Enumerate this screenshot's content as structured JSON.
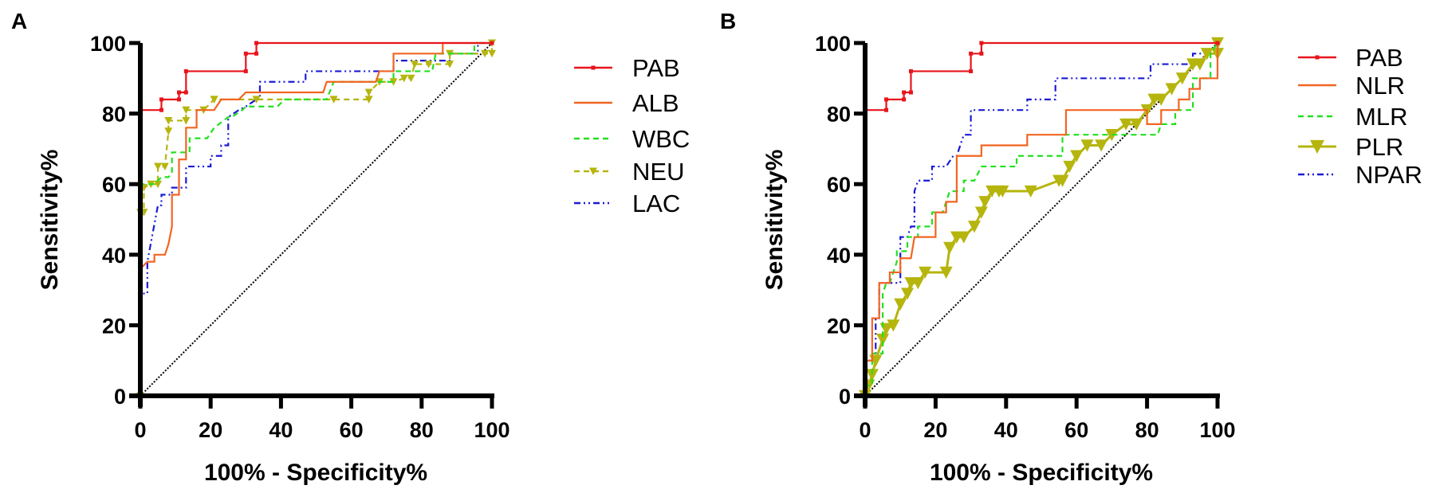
{
  "chart_data": [
    {
      "panel": "A",
      "type": "line",
      "title": "",
      "xlabel": "100% - Specificity%",
      "ylabel": "Sensitivity%",
      "xlim": [
        0,
        100
      ],
      "ylim": [
        0,
        100
      ],
      "xticks": [
        "0",
        "20",
        "40",
        "60",
        "80",
        "100"
      ],
      "yticks": [
        "0",
        "20",
        "40",
        "60",
        "80",
        "100"
      ],
      "grid": false,
      "legend_position": "right",
      "reference_line": {
        "name": "chance",
        "x": [
          0,
          100
        ],
        "y": [
          0,
          100
        ],
        "color": "#000000",
        "style": "dotted"
      },
      "series": [
        {
          "name": "PAB",
          "color": "#e8141c",
          "style": "solid-square-markers",
          "x": [
            0,
            0,
            6,
            6,
            11,
            11,
            13,
            13,
            30,
            30,
            33,
            33,
            100
          ],
          "y": [
            0,
            81,
            81,
            84,
            84,
            86,
            86,
            92,
            92,
            97,
            97,
            100,
            100
          ]
        },
        {
          "name": "ALB",
          "color": "#f26522",
          "style": "solid",
          "x": [
            0,
            0,
            2,
            4,
            4,
            7,
            8,
            9,
            9,
            11,
            11,
            13,
            13,
            16,
            16,
            21,
            23,
            28,
            30,
            52,
            53,
            67,
            68,
            72,
            72,
            86,
            86,
            100
          ],
          "y": [
            0,
            36,
            38,
            38,
            40,
            40,
            43,
            48,
            57,
            57,
            67,
            67,
            76,
            76,
            81,
            81,
            84,
            84,
            86,
            86,
            89,
            89,
            92,
            92,
            97,
            97,
            100,
            100
          ]
        },
        {
          "name": "WBC",
          "color": "#22e01f",
          "style": "dashed",
          "x": [
            0,
            0,
            4,
            6,
            8,
            9,
            9,
            14,
            14,
            19,
            21,
            25,
            26,
            29,
            30,
            39,
            41,
            53,
            55,
            72,
            72,
            83,
            84,
            95,
            95,
            100
          ],
          "y": [
            0,
            60,
            60,
            62,
            62,
            63,
            69,
            69,
            73,
            73,
            76,
            79,
            79,
            81,
            82,
            82,
            84,
            84,
            89,
            89,
            92,
            92,
            97,
            97,
            100,
            100
          ]
        },
        {
          "name": "NEU",
          "color": "#b5b50e",
          "style": "dashed-triangle-markers",
          "x": [
            0,
            0,
            1,
            1,
            3,
            5,
            5,
            7,
            8,
            8,
            13,
            13,
            18,
            21,
            21,
            33,
            55,
            65,
            65,
            68,
            72,
            75,
            77,
            78,
            82,
            88,
            88,
            98,
            100,
            100
          ],
          "y": [
            0,
            52,
            52,
            59,
            60,
            60,
            65,
            65,
            75,
            78,
            78,
            81,
            81,
            84,
            84,
            84,
            84,
            84,
            86,
            89,
            89,
            90,
            90,
            94,
            94,
            94,
            97,
            97,
            97,
            100
          ]
        },
        {
          "name": "LAC",
          "color": "#1a1ad6",
          "style": "dash-dot-dot",
          "x": [
            0,
            0,
            2,
            2,
            5,
            6,
            6,
            9,
            9,
            13,
            13,
            20,
            20,
            23,
            23,
            25,
            25,
            28,
            30,
            33,
            34,
            34,
            47,
            47,
            72,
            72,
            88,
            88,
            96,
            96,
            100
          ],
          "y": [
            0,
            29,
            29,
            38,
            54,
            54,
            57,
            57,
            59,
            59,
            65,
            65,
            68,
            68,
            71,
            71,
            79,
            81,
            82,
            84,
            84,
            89,
            89,
            92,
            92,
            95,
            95,
            97,
            97,
            100,
            100
          ]
        }
      ]
    },
    {
      "panel": "B",
      "type": "line",
      "title": "",
      "xlabel": "100% - Specificity%",
      "ylabel": "Sensitivity%",
      "xlim": [
        0,
        100
      ],
      "ylim": [
        0,
        100
      ],
      "xticks": [
        "0",
        "20",
        "40",
        "60",
        "80",
        "100"
      ],
      "yticks": [
        "0",
        "20",
        "40",
        "60",
        "80",
        "100"
      ],
      "grid": false,
      "legend_position": "right",
      "reference_line": {
        "name": "chance",
        "x": [
          0,
          100
        ],
        "y": [
          0,
          100
        ],
        "color": "#000000",
        "style": "dotted"
      },
      "series": [
        {
          "name": "PAB",
          "color": "#e8141c",
          "style": "solid-square-markers",
          "x": [
            0,
            0,
            6,
            6,
            11,
            11,
            13,
            13,
            30,
            30,
            33,
            33,
            100
          ],
          "y": [
            0,
            81,
            81,
            84,
            84,
            86,
            86,
            92,
            92,
            97,
            97,
            100,
            100
          ]
        },
        {
          "name": "NLR",
          "color": "#f26522",
          "style": "solid",
          "x": [
            0,
            0,
            2,
            2,
            4,
            4,
            7,
            7,
            10,
            10,
            13,
            14,
            20,
            20,
            23,
            23,
            26,
            26,
            33,
            33,
            46,
            46,
            57,
            57,
            80,
            80,
            84,
            84,
            89,
            89,
            92,
            92,
            95,
            95,
            100,
            100
          ],
          "y": [
            0,
            10,
            10,
            22,
            22,
            32,
            32,
            35,
            35,
            39,
            39,
            45,
            45,
            52,
            52,
            55,
            55,
            68,
            68,
            71,
            71,
            74,
            74,
            81,
            81,
            77,
            77,
            81,
            81,
            84,
            84,
            87,
            87,
            90,
            90,
            100
          ]
        },
        {
          "name": "MLR",
          "color": "#22e01f",
          "style": "dashed",
          "x": [
            0,
            0,
            2,
            2,
            5,
            5,
            6,
            7,
            8,
            9,
            9,
            12,
            12,
            15,
            15,
            19,
            19,
            22,
            24,
            28,
            28,
            31,
            33,
            43,
            43,
            56,
            56,
            83,
            84,
            88,
            88,
            93,
            93,
            98,
            98,
            100
          ],
          "y": [
            0,
            3,
            3,
            12,
            12,
            29,
            32,
            32,
            35,
            38,
            41,
            41,
            45,
            45,
            48,
            48,
            52,
            52,
            58,
            58,
            61,
            61,
            65,
            65,
            68,
            68,
            74,
            74,
            77,
            77,
            81,
            81,
            90,
            90,
            97,
            100
          ]
        },
        {
          "name": "PLR",
          "color": "#b5b50e",
          "style": "solid-large-triangle-markers",
          "x": [
            0,
            1,
            2,
            3,
            5,
            6,
            8,
            10,
            12,
            13,
            15,
            17,
            23,
            24,
            26,
            28,
            31,
            33,
            34,
            36,
            38,
            39,
            47,
            55,
            56,
            58,
            60,
            63,
            67,
            70,
            74,
            77,
            80,
            82,
            84,
            87,
            90,
            93,
            95,
            97,
            100,
            100
          ],
          "y": [
            0,
            3,
            6,
            10,
            16,
            19,
            20,
            26,
            29,
            32,
            32,
            35,
            35,
            42,
            45,
            45,
            48,
            52,
            55,
            58,
            58,
            58,
            58,
            61,
            61,
            65,
            68,
            71,
            71,
            74,
            77,
            77,
            81,
            84,
            84,
            87,
            90,
            94,
            94,
            97,
            97,
            100
          ]
        },
        {
          "name": "NPAR",
          "color": "#1a1ad6",
          "style": "dash-dot-dot",
          "x": [
            0,
            0,
            3,
            3,
            4,
            4,
            10,
            10,
            12,
            13,
            14,
            14,
            15,
            19,
            19,
            23,
            25,
            26,
            28,
            30,
            30,
            46,
            46,
            54,
            54,
            81,
            81,
            93,
            93,
            100,
            100
          ],
          "y": [
            0,
            10,
            10,
            22,
            22,
            32,
            32,
            45,
            45,
            48,
            48,
            58,
            61,
            61,
            65,
            65,
            68,
            68,
            74,
            74,
            81,
            81,
            84,
            84,
            90,
            90,
            94,
            94,
            97,
            97,
            100
          ]
        }
      ]
    }
  ]
}
